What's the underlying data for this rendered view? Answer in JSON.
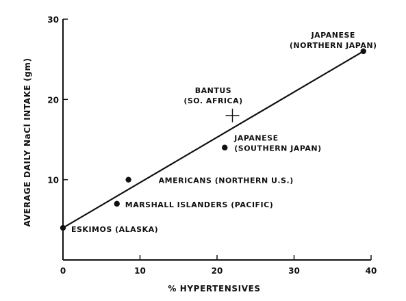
{
  "chart_data": {
    "type": "scatter",
    "title": "",
    "xlabel": "% HYPERTENSIVES",
    "ylabel": "AVERAGE DAILY NaCl INTAKE (gm)",
    "xlim": [
      0,
      40
    ],
    "ylim": [
      0,
      30
    ],
    "x_ticks": [
      0,
      10,
      20,
      30,
      40
    ],
    "y_ticks": [
      10,
      20,
      30
    ],
    "grid": false,
    "legend": "none",
    "points": [
      {
        "label_lines": [
          "ESKIMOS (ALASKA)"
        ],
        "x": 0,
        "y": 4,
        "marker": "dot"
      },
      {
        "label_lines": [
          "MARSHALL ISLANDERS (PACIFIC)"
        ],
        "x": 7,
        "y": 7,
        "marker": "dot"
      },
      {
        "label_lines": [
          "AMERICANS (NORTHERN U.S.)"
        ],
        "x": 8.5,
        "y": 10,
        "marker": "dot"
      },
      {
        "label_lines": [
          "JAPANESE",
          "(SOUTHERN JAPAN)"
        ],
        "x": 21,
        "y": 14,
        "marker": "dot"
      },
      {
        "label_lines": [
          "BANTUS",
          "(SO. AFRICA)"
        ],
        "x": 22,
        "y": 18,
        "marker": "cross"
      },
      {
        "label_lines": [
          "JAPANESE",
          "(NORTHERN JAPAN)"
        ],
        "x": 39,
        "y": 26,
        "marker": "dot"
      }
    ],
    "trendline": {
      "x": [
        0,
        39
      ],
      "y": [
        4,
        26
      ]
    }
  }
}
